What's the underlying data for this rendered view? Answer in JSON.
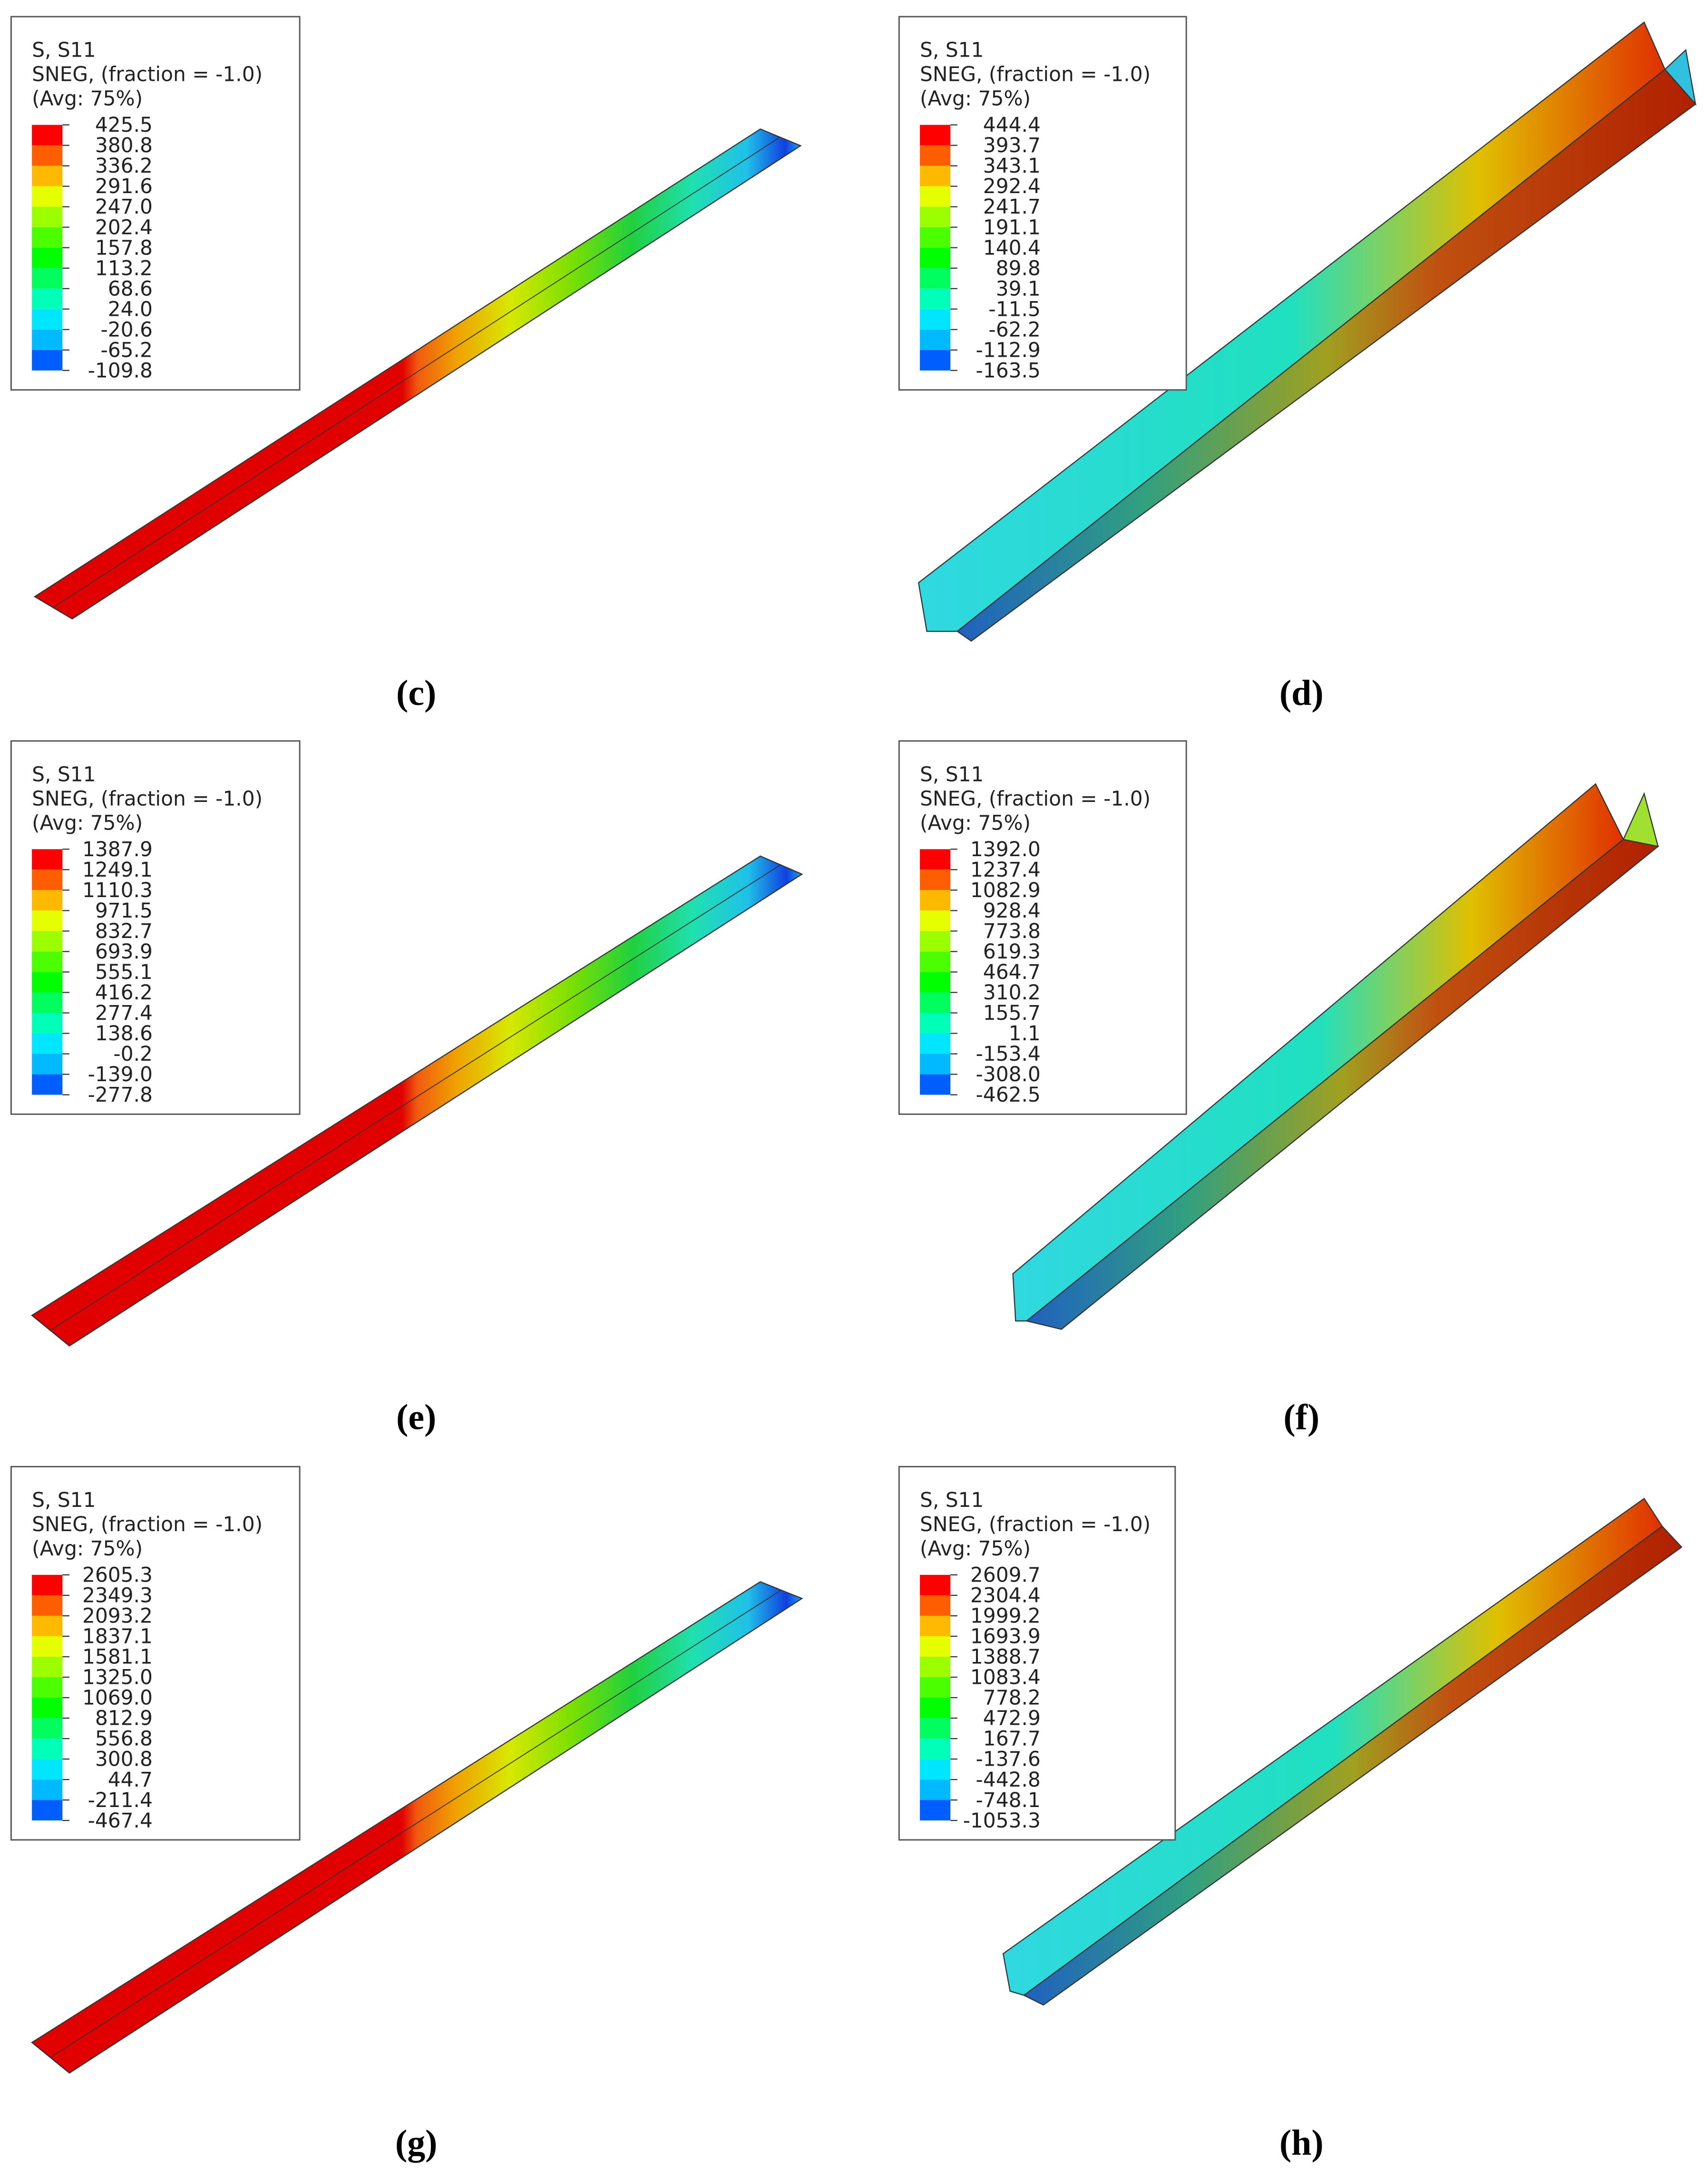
{
  "panels": [
    {
      "legend": {
        "title": [
          "S, S11",
          "SNEG, (fraction = -1.0)",
          "(Avg: 75%)"
        ],
        "values": [
          "425.5",
          "380.8",
          "336.2",
          "291.6",
          "247.0",
          "202.4",
          "157.8",
          "113.2",
          "68.6",
          "24.0",
          "-20.6",
          "-65.2",
          "-109.8"
        ]
      },
      "caption": "(c)"
    },
    {
      "legend": {
        "title": [
          "S, S11",
          "SNEG, (fraction = -1.0)",
          "(Avg: 75%)"
        ],
        "values": [
          "444.4",
          "393.7",
          "343.1",
          "292.4",
          "241.7",
          "191.1",
          "140.4",
          "89.8",
          "39.1",
          "-11.5",
          "-62.2",
          "-112.9",
          "-163.5"
        ]
      },
      "caption": "(d)"
    },
    {
      "legend": {
        "title": [
          "S, S11",
          "SNEG, (fraction = -1.0)",
          "(Avg: 75%)"
        ],
        "values": [
          "1387.9",
          "1249.1",
          "1110.3",
          "971.5",
          "832.7",
          "693.9",
          "555.1",
          "416.2",
          "277.4",
          "138.6",
          "-0.2",
          "-139.0",
          "-277.8"
        ]
      },
      "caption": "(e)"
    },
    {
      "legend": {
        "title": [
          "S, S11",
          "SNEG, (fraction = -1.0)",
          "(Avg: 75%)"
        ],
        "values": [
          "1392.0",
          "1237.4",
          "1082.9",
          "928.4",
          "773.8",
          "619.3",
          "464.7",
          "310.2",
          "155.7",
          "1.1",
          "-153.4",
          "-308.0",
          "-462.5"
        ]
      },
      "caption": "(f)"
    },
    {
      "legend": {
        "title": [
          "S, S11",
          "SNEG, (fraction = -1.0)",
          "(Avg: 75%)"
        ],
        "values": [
          "2605.3",
          "2349.3",
          "2093.2",
          "1837.1",
          "1581.1",
          "1325.0",
          "1069.0",
          "812.9",
          "556.8",
          "300.8",
          "44.7",
          "-211.4",
          "-467.4"
        ]
      },
      "caption": "(g)"
    },
    {
      "legend": {
        "title": [
          "S, S11",
          "SNEG, (fraction = -1.0)",
          "(Avg: 75%)"
        ],
        "values": [
          "2609.7",
          "2304.4",
          "1999.2",
          "1693.9",
          "1388.7",
          "1083.4",
          "778.2",
          "472.9",
          "167.7",
          "-137.6",
          "-442.8",
          "-748.1",
          "-1053.3"
        ]
      },
      "caption": "(h)"
    }
  ]
}
